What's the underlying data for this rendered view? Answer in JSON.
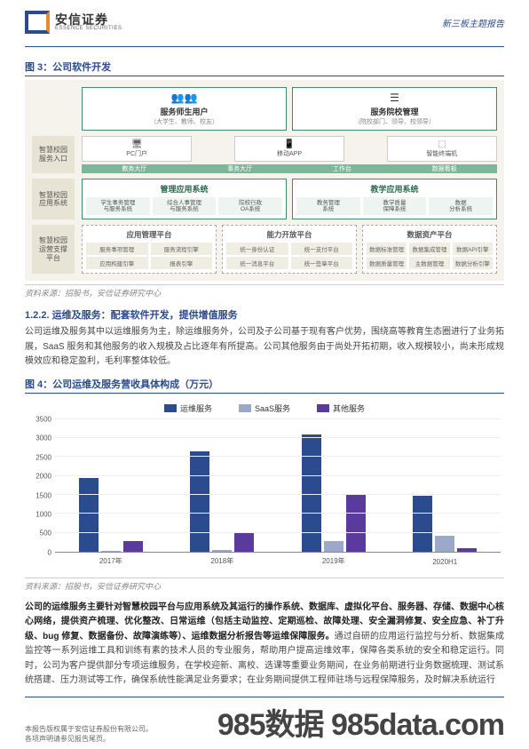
{
  "header": {
    "logo_cn": "安信证券",
    "logo_en": "ESSENCE SECURITIES",
    "right_text": "新三板主题报告"
  },
  "fig3": {
    "title": "图 3：公司软件开发",
    "source": "资料来源：招股书，安信证券研究中心",
    "top_left": {
      "title": "服务师生用户",
      "sub": "（大学生、教师、校友）"
    },
    "top_right": {
      "title": "服务院校管理",
      "sub": "（院校部门、领导、校领导）"
    },
    "row2_label": "智慧校园\n服务入口",
    "row2_top": [
      "PC门户",
      "",
      "移动APP",
      "",
      "智能终端机"
    ],
    "row2_bottom": [
      "教务大厅",
      "事务大厅",
      "工作台",
      "数据看板"
    ],
    "row3_label": "智慧校园\n应用系统",
    "row3_left": {
      "title": "管理应用系统",
      "items": [
        "学生事务管理\n与服务系统",
        "综合人事管理\n与服务系统",
        "院校行政\nOA系统"
      ]
    },
    "row3_right": {
      "title": "教学应用系统",
      "items": [
        "教务管理\n系统",
        "教学质量\n保障系统",
        "数据\n分析系统"
      ]
    },
    "row4_label": "智慧校园\n运营支撑\n平台",
    "row4_groups": [
      {
        "title": "应用管理平台",
        "items": [
          "服务事项管理",
          "服务流程引擎",
          "应用构建引擎",
          "报表引擎"
        ]
      },
      {
        "title": "能力开放平台",
        "items": [
          "统一身份认证",
          "统一支付平台",
          "统一消息平台",
          "统一签章平台"
        ]
      },
      {
        "title": "数据资产平台",
        "items": [
          "数据标准管理",
          "数据集成管理",
          "数据API引擎",
          "数据质量管理",
          "主数据管理",
          "数据分析引擎"
        ]
      }
    ]
  },
  "sec122": {
    "title": "1.2.2. 运维及服务：配套软件开发，提供增值服务",
    "para": "公司运维及服务其中以运维服务为主，除运维服务外，公司及子公司基于现有客户优势，围绕高等教育生态圈进行了业务拓展，SaaS 服务和其他服务的收入规模及占比逐年有所提高。公司其他服务由于尚处开拓初期，收入规模较小，尚未形成规模效应和稳定盈利，毛利率整体较低。"
  },
  "fig4": {
    "title": "图 4：公司运维及服务营收具体构成（万元）",
    "source": "资料来源：招股书，安信证券研究中心",
    "legend": [
      "运维服务",
      "SaaS服务",
      "其他服务"
    ],
    "colors": [
      "#2a4b8d",
      "#9ba8c9",
      "#5b3a9e"
    ],
    "ymax": 3500,
    "ytick_step": 500,
    "categories": [
      "2017年",
      "2018年",
      "2019年",
      "2020H1"
    ],
    "series": {
      "运维服务": [
        1950,
        2650,
        3100,
        1480
      ],
      "SaaS服务": [
        20,
        40,
        280,
        420
      ],
      "其他服务": [
        280,
        520,
        1500,
        100
      ]
    },
    "background": "#ffffff"
  },
  "body2": {
    "lead": "公司的运维服务主要针对智慧校园平台与应用系统及其运行的操作系统、数据库、虚拟化平台、服务器、存储、数据中心核心网络，提供资产梳理、优化整改、日常运维（包括主动监控、定期巡检、故障处理、安全漏洞修复、安全应急、补丁升级、bug 修复、数据备份、故障演练等）、运维数据分析报告等运维保障服务。",
    "rest": "通过自研的应用运行监控与分析、数据集成监控等一系列运维工具和训练有素的技术人员的专业服务，帮助用户提高运维效率，保障各类系统的安全和稳定运行。同时，公司为客户提供部分专项运维服务，在学校迎新、离校、选课等重要业务期间，在业务前期进行业务数据梳理、测试系统搭建、压力测试等工作，确保系统性能满足业务要求；在业务期间提供工程师驻场与远程保障服务，及时解决系统运行"
  },
  "footer": {
    "line1": "本报告版权属于安信证券股份有限公司。",
    "line2": "各项声明请参见报告尾页。",
    "watermark": "985数据 985data.com"
  }
}
